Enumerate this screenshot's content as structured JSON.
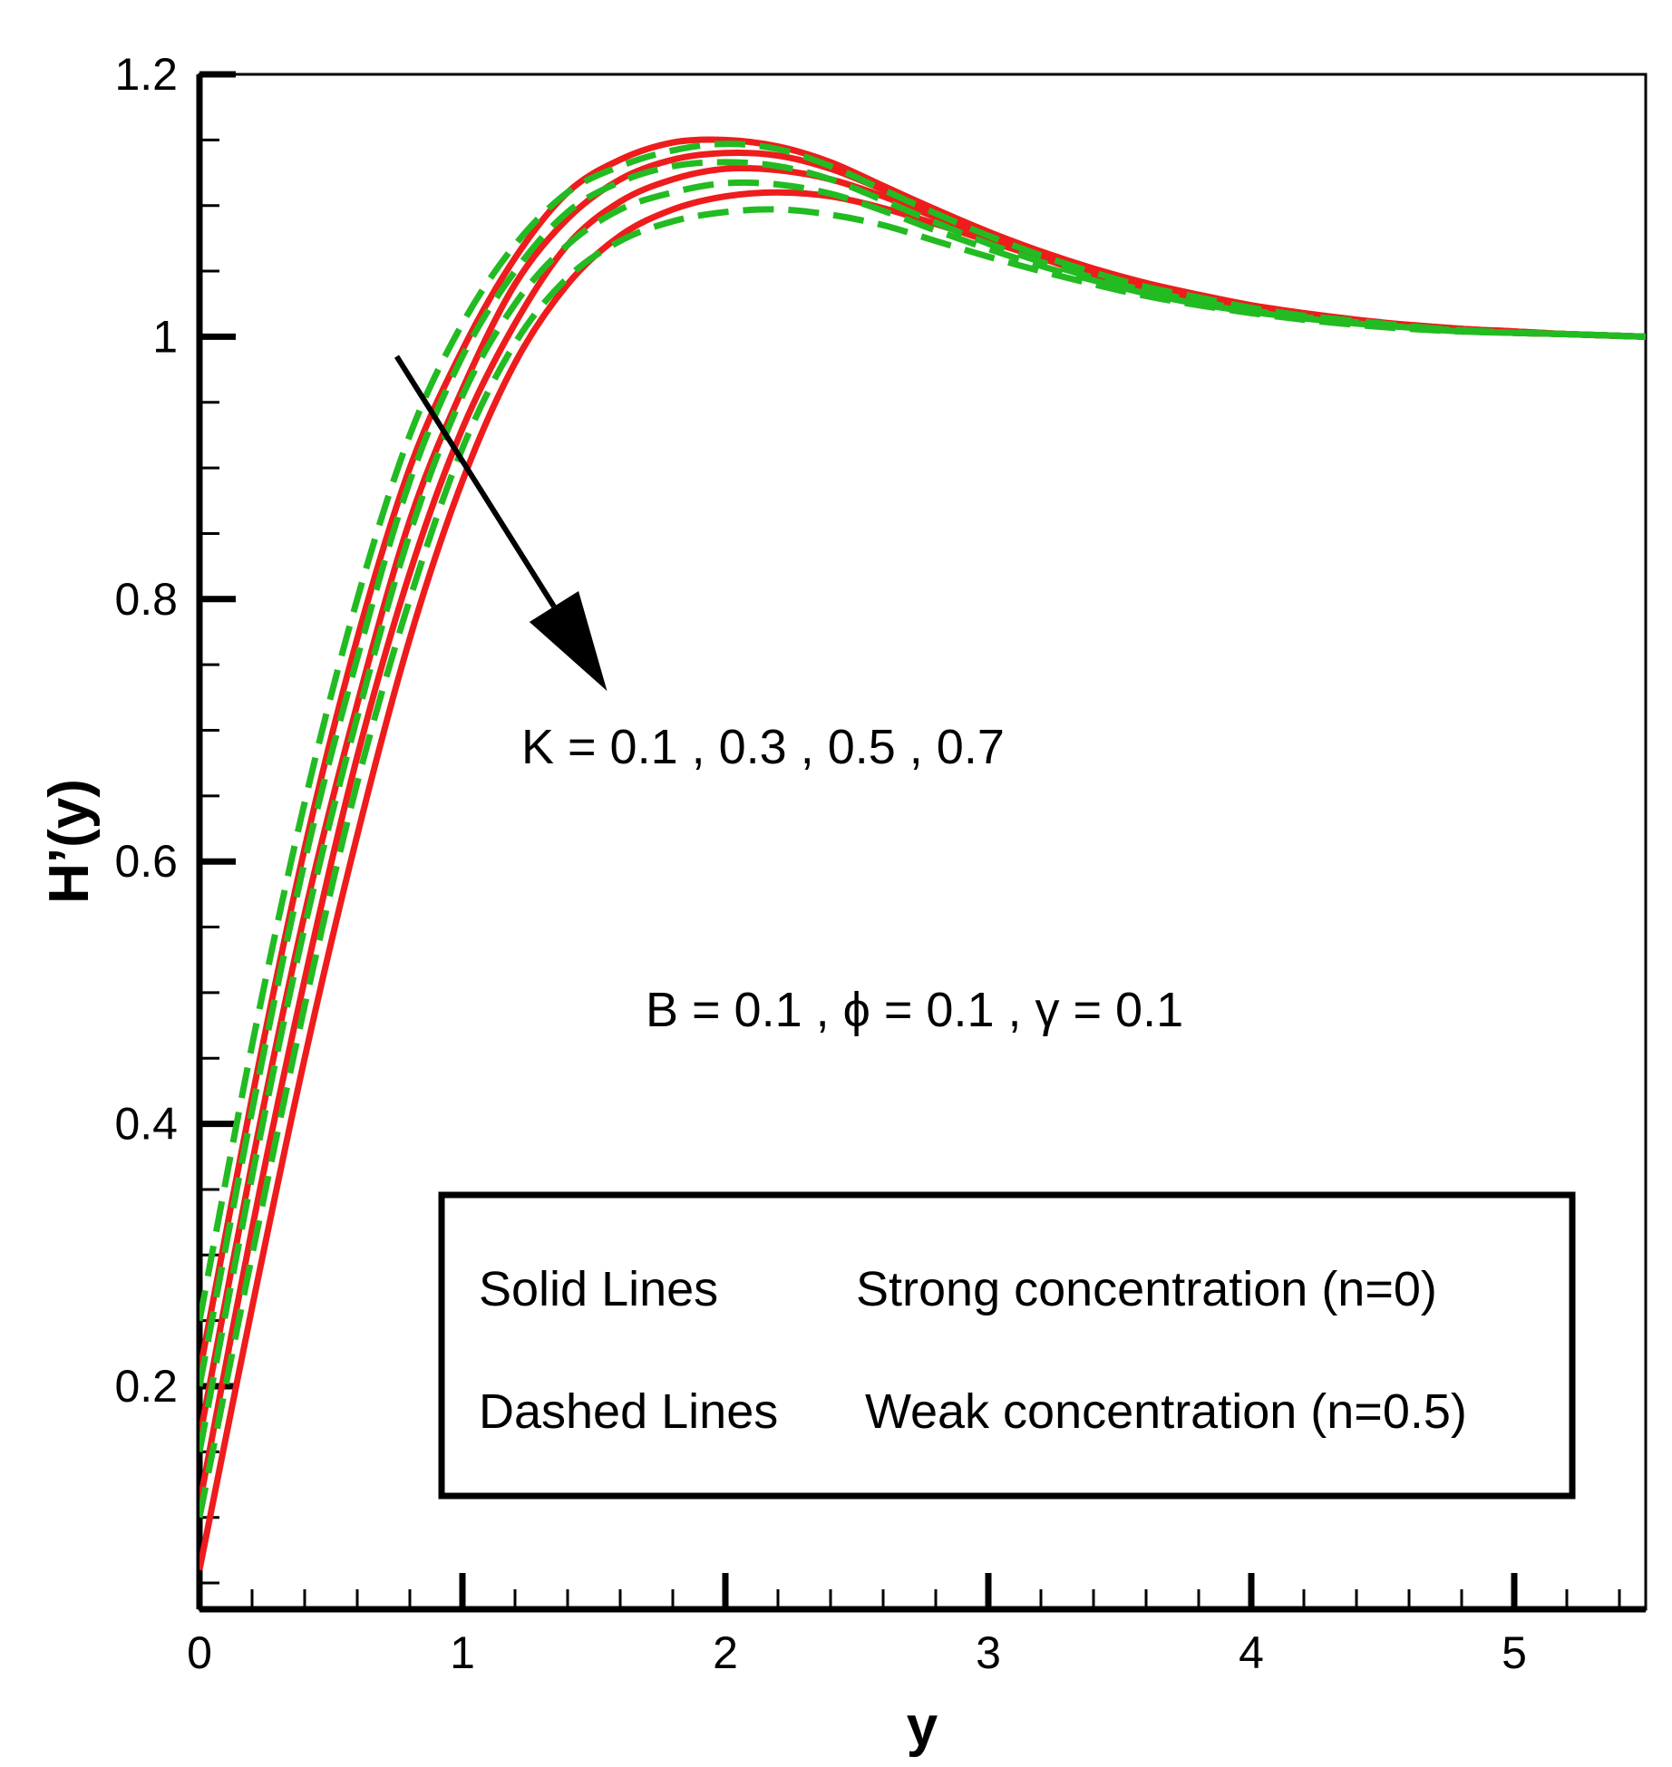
{
  "chart_data": {
    "type": "line",
    "title": "",
    "xlabel": "y",
    "ylabel": "H’(y)",
    "xlim": [
      0,
      5.5
    ],
    "ylim": [
      0.03,
      1.2
    ],
    "x_ticks": [
      0,
      1,
      2,
      3,
      4,
      5
    ],
    "x_tick_labels": [
      "0",
      "1",
      "2",
      "3",
      "4",
      "5"
    ],
    "y_ticks": [
      0.2,
      0.4,
      0.6,
      0.8,
      1.0,
      1.2
    ],
    "y_tick_labels": [
      "0.2",
      "0.4",
      "0.6",
      "0.8",
      "1",
      "1.2"
    ],
    "x_minor_step": 0.2,
    "y_minor_step": 0.05,
    "grid": false,
    "colors": {
      "solid": "#ee1c1c",
      "dashed": "#22bb22",
      "axis": "#000000"
    },
    "series": [
      {
        "name": "K = 0.1, n=0",
        "style": "solid",
        "x": [
          0,
          0.2,
          0.4,
          0.6,
          0.8,
          1.0,
          1.2,
          1.4,
          1.6,
          1.8,
          2.0,
          2.2,
          2.4,
          2.6,
          2.8,
          3.0,
          3.2,
          3.4,
          3.6,
          3.8,
          4.0,
          4.2,
          4.4,
          4.6,
          4.8,
          5.0,
          5.2,
          5.5
        ],
        "values": [
          0.21,
          0.42,
          0.61,
          0.77,
          0.9,
          0.99,
          1.06,
          1.11,
          1.135,
          1.148,
          1.15,
          1.145,
          1.133,
          1.115,
          1.097,
          1.08,
          1.065,
          1.052,
          1.041,
          1.032,
          1.024,
          1.018,
          1.013,
          1.009,
          1.006,
          1.004,
          1.002,
          1.0
        ]
      },
      {
        "name": "K = 0.3, n=0",
        "style": "solid",
        "x": [
          0,
          0.2,
          0.4,
          0.6,
          0.8,
          1.0,
          1.2,
          1.4,
          1.6,
          1.8,
          2.0,
          2.2,
          2.4,
          2.6,
          2.8,
          3.0,
          3.2,
          3.4,
          3.6,
          3.8,
          4.0,
          4.2,
          4.4,
          4.6,
          4.8,
          5.0,
          5.2,
          5.5
        ],
        "values": [
          0.16,
          0.37,
          0.56,
          0.72,
          0.86,
          0.96,
          1.04,
          1.09,
          1.12,
          1.135,
          1.14,
          1.138,
          1.128,
          1.112,
          1.095,
          1.078,
          1.063,
          1.05,
          1.039,
          1.03,
          1.023,
          1.017,
          1.012,
          1.009,
          1.006,
          1.004,
          1.002,
          1.0
        ]
      },
      {
        "name": "K = 0.5, n=0",
        "style": "solid",
        "x": [
          0,
          0.2,
          0.4,
          0.6,
          0.8,
          1.0,
          1.2,
          1.4,
          1.6,
          1.8,
          2.0,
          2.2,
          2.4,
          2.6,
          2.8,
          3.0,
          3.2,
          3.4,
          3.6,
          3.8,
          4.0,
          4.2,
          4.4,
          4.6,
          4.8,
          5.0,
          5.2,
          5.5
        ],
        "values": [
          0.11,
          0.32,
          0.51,
          0.68,
          0.82,
          0.93,
          1.01,
          1.07,
          1.103,
          1.12,
          1.128,
          1.127,
          1.12,
          1.107,
          1.091,
          1.076,
          1.062,
          1.049,
          1.038,
          1.029,
          1.022,
          1.016,
          1.012,
          1.008,
          1.005,
          1.003,
          1.002,
          1.0
        ]
      },
      {
        "name": "K = 0.7, n=0",
        "style": "solid",
        "x": [
          0,
          0.2,
          0.4,
          0.6,
          0.8,
          1.0,
          1.2,
          1.4,
          1.6,
          1.8,
          2.0,
          2.2,
          2.4,
          2.6,
          2.8,
          3.0,
          3.2,
          3.4,
          3.6,
          3.8,
          4.0,
          4.2,
          4.4,
          4.6,
          4.8,
          5.0,
          5.2,
          5.5
        ],
        "values": [
          0.06,
          0.26,
          0.45,
          0.62,
          0.77,
          0.89,
          0.98,
          1.04,
          1.077,
          1.097,
          1.107,
          1.11,
          1.107,
          1.098,
          1.086,
          1.073,
          1.06,
          1.047,
          1.037,
          1.028,
          1.021,
          1.015,
          1.011,
          1.008,
          1.005,
          1.003,
          1.002,
          1.0
        ]
      },
      {
        "name": "K = 0.1, n=0.5",
        "style": "dashed",
        "x": [
          0,
          0.2,
          0.4,
          0.6,
          0.8,
          1.0,
          1.2,
          1.4,
          1.6,
          1.8,
          2.0,
          2.2,
          2.4,
          2.6,
          2.8,
          3.0,
          3.2,
          3.4,
          3.6,
          3.8,
          4.0,
          4.2,
          4.4,
          4.6,
          4.8,
          5.0,
          5.2,
          5.5
        ],
        "values": [
          0.25,
          0.46,
          0.645,
          0.8,
          0.925,
          1.01,
          1.07,
          1.11,
          1.13,
          1.142,
          1.147,
          1.143,
          1.13,
          1.112,
          1.094,
          1.077,
          1.062,
          1.049,
          1.038,
          1.03,
          1.022,
          1.016,
          1.012,
          1.008,
          1.005,
          1.003,
          1.002,
          1.0
        ]
      },
      {
        "name": "K = 0.3, n=0.5",
        "style": "dashed",
        "x": [
          0,
          0.2,
          0.4,
          0.6,
          0.8,
          1.0,
          1.2,
          1.4,
          1.6,
          1.8,
          2.0,
          2.2,
          2.4,
          2.6,
          2.8,
          3.0,
          3.2,
          3.4,
          3.6,
          3.8,
          4.0,
          4.2,
          4.4,
          4.6,
          4.8,
          5.0,
          5.2,
          5.5
        ],
        "values": [
          0.2,
          0.41,
          0.6,
          0.755,
          0.89,
          0.985,
          1.05,
          1.095,
          1.118,
          1.13,
          1.133,
          1.13,
          1.12,
          1.104,
          1.087,
          1.071,
          1.057,
          1.045,
          1.035,
          1.027,
          1.02,
          1.015,
          1.011,
          1.007,
          1.005,
          1.003,
          1.002,
          1.0
        ]
      },
      {
        "name": "K = 0.5, n=0.5",
        "style": "dashed",
        "x": [
          0,
          0.2,
          0.4,
          0.6,
          0.8,
          1.0,
          1.2,
          1.4,
          1.6,
          1.8,
          2.0,
          2.2,
          2.4,
          2.6,
          2.8,
          3.0,
          3.2,
          3.4,
          3.6,
          3.8,
          4.0,
          4.2,
          4.4,
          4.6,
          4.8,
          5.0,
          5.2,
          5.5
        ],
        "values": [
          0.15,
          0.36,
          0.55,
          0.71,
          0.85,
          0.955,
          1.025,
          1.07,
          1.097,
          1.11,
          1.117,
          1.116,
          1.109,
          1.096,
          1.081,
          1.067,
          1.054,
          1.043,
          1.033,
          1.025,
          1.019,
          1.014,
          1.01,
          1.007,
          1.004,
          1.003,
          1.002,
          1.0
        ]
      },
      {
        "name": "K = 0.7, n=0.5",
        "style": "dashed",
        "x": [
          0,
          0.2,
          0.4,
          0.6,
          0.8,
          1.0,
          1.2,
          1.4,
          1.6,
          1.8,
          2.0,
          2.2,
          2.4,
          2.6,
          2.8,
          3.0,
          3.2,
          3.4,
          3.6,
          3.8,
          4.0,
          4.2,
          4.4,
          4.6,
          4.8,
          5.0,
          5.2,
          5.5
        ],
        "values": [
          0.1,
          0.3,
          0.49,
          0.66,
          0.8,
          0.915,
          0.995,
          1.045,
          1.073,
          1.088,
          1.095,
          1.097,
          1.093,
          1.085,
          1.073,
          1.061,
          1.05,
          1.04,
          1.031,
          1.024,
          1.018,
          1.013,
          1.009,
          1.006,
          1.004,
          1.003,
          1.002,
          1.0
        ]
      }
    ],
    "annotations": {
      "arrow_text": "K = 0.1 , 0.3 , 0.5 , 0.7",
      "arrow_from": [
        0.75,
        0.985
      ],
      "arrow_to": [
        1.55,
        0.73
      ],
      "params_text": "B = 0.1 , ϕ = 0.1 , γ = 0.1"
    },
    "legend": {
      "placement": "bottom-right",
      "rows": [
        {
          "key": "Solid Lines",
          "desc": "Strong concentration (n=0)"
        },
        {
          "key": "Dashed Lines",
          "desc": "Weak concentration (n=0.5)"
        }
      ]
    }
  }
}
